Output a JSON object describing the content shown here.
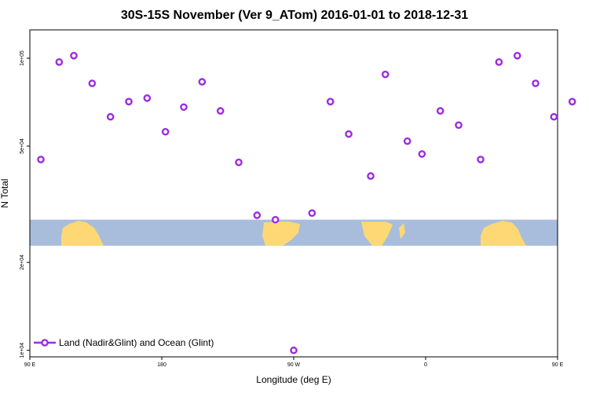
{
  "chart_data": {
    "type": "scatter",
    "title": "30S-15S November (Ver 9_ATom)   2016-01-01 to 2018-12-31",
    "xlabel": "Longitude (deg E)",
    "ylabel": "N Total",
    "x_axis": {
      "range": [
        90,
        450
      ],
      "ticks": [
        {
          "value": 90,
          "label": "90 E"
        },
        {
          "value": 180,
          "label": "180"
        },
        {
          "value": 270,
          "label": "90 W"
        },
        {
          "value": 360,
          "label": "0"
        },
        {
          "value": 450,
          "label": "90 E"
        },
        {
          "value": 540,
          "label": "180"
        }
      ]
    },
    "y_axis": {
      "scale": "log",
      "range": [
        9500,
        125000
      ],
      "ticks": [
        {
          "value": 10000,
          "label": "1e+04"
        },
        {
          "value": 20000,
          "label": "2e+04"
        },
        {
          "value": 50000,
          "label": "5e+04"
        },
        {
          "value": 100000,
          "label": "1e+05"
        }
      ]
    },
    "grid": false,
    "legend_position": "bottom-left",
    "background_map_band": {
      "y_range": [
        22800,
        28000
      ],
      "ocean_color": "#a8bddb",
      "land_color": "#fdd874"
    },
    "series": [
      {
        "name": "Land (Nadir&Glint) and Ocean (Glint)",
        "color": "#9b2de0",
        "points": [
          {
            "x": 97.5,
            "y": 45000
          },
          {
            "x": 110,
            "y": 97000
          },
          {
            "x": 120,
            "y": 102000
          },
          {
            "x": 132.5,
            "y": 82000
          },
          {
            "x": 145,
            "y": 63000
          },
          {
            "x": 157.5,
            "y": 71000
          },
          {
            "x": 170,
            "y": 73000
          },
          {
            "x": 182.5,
            "y": 56000
          },
          {
            "x": 195,
            "y": 68000
          },
          {
            "x": 207.5,
            "y": 83000
          },
          {
            "x": 220,
            "y": 66000
          },
          {
            "x": 232.5,
            "y": 44000
          },
          {
            "x": 245,
            "y": 29000
          },
          {
            "x": 257.5,
            "y": 28000
          },
          {
            "x": 270,
            "y": 10000
          },
          {
            "x": 282.5,
            "y": 29500
          },
          {
            "x": 295,
            "y": 71000
          },
          {
            "x": 307.5,
            "y": 55000
          },
          {
            "x": 322.5,
            "y": 39500
          },
          {
            "x": 332.5,
            "y": 88000
          },
          {
            "x": 347.5,
            "y": 52000
          },
          {
            "x": 357.5,
            "y": 47000
          },
          {
            "x": 370,
            "y": 66000
          },
          {
            "x": 382.5,
            "y": 59000
          },
          {
            "x": 397.5,
            "y": 45000
          },
          {
            "x": 410,
            "y": 97000
          },
          {
            "x": 422.5,
            "y": 102000
          },
          {
            "x": 435,
            "y": 82000
          },
          {
            "x": 447.5,
            "y": 63000
          },
          {
            "x": 460,
            "y": 71000
          }
        ]
      }
    ]
  }
}
